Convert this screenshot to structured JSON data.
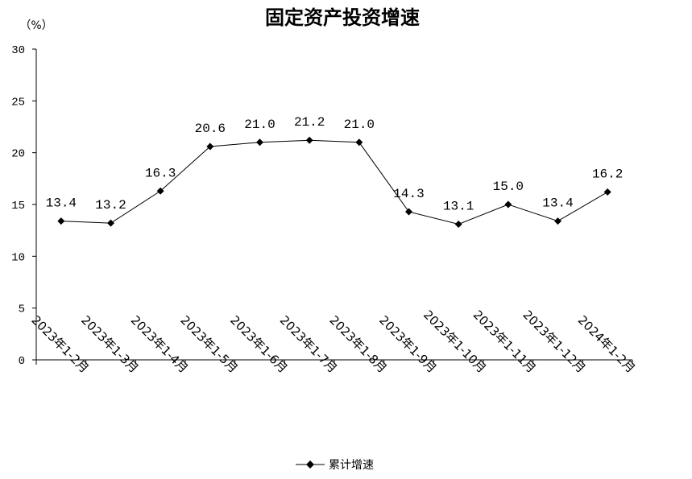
{
  "chart_data": {
    "type": "line",
    "title": "固定资产投资增速",
    "ylabel": "（%）",
    "xlabel": "",
    "ylim": [
      0,
      30
    ],
    "yticks": [
      0,
      5,
      10,
      15,
      20,
      25,
      30
    ],
    "grid": false,
    "legend_position": "bottom",
    "categories": [
      "2023年1-2月",
      "2023年1-3月",
      "2023年1-4月",
      "2023年1-5月",
      "2023年1-6月",
      "2023年1-7月",
      "2023年1-8月",
      "2023年1-9月",
      "2023年1-10月",
      "2023年1-11月",
      "2023年1-12月",
      "2024年1-2月"
    ],
    "series": [
      {
        "name": "累计增速",
        "values": [
          13.4,
          13.2,
          16.3,
          20.6,
          21.0,
          21.2,
          21.0,
          14.3,
          13.1,
          15.0,
          13.4,
          16.2
        ],
        "labels": [
          "13.4",
          "13.2",
          "16.3",
          "20.6",
          "21.0",
          "21.2",
          "21.0",
          "14.3",
          "13.1",
          "15.0",
          "13.4",
          "16.2"
        ],
        "color": "#000000",
        "marker": "diamond"
      }
    ]
  }
}
